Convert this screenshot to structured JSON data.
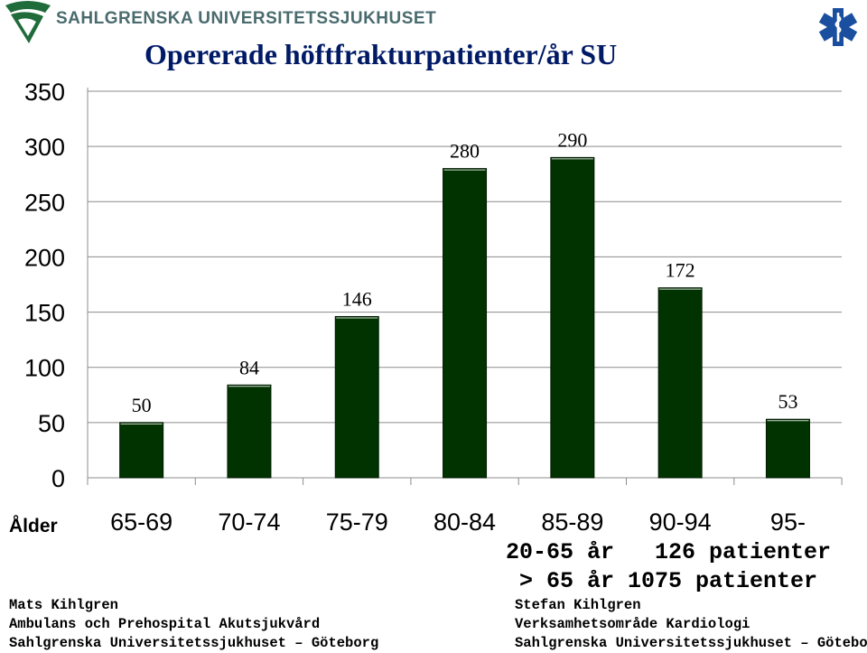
{
  "header": {
    "logo_text": "SAHLGRENSKA UNIVERSITETSSJUKHUSET",
    "logo_icon": "su-logo-icon",
    "corner_icon": "star-of-life-icon",
    "colors": {
      "logo_green": "#1f6b3a",
      "logo_text": "#4a6b6e",
      "title": "#001a66",
      "star": "#1a4fa0"
    }
  },
  "chart_data": {
    "type": "bar",
    "title": "Opererade höftfrakturpatienter/år SU",
    "xlabel": "Ålder",
    "ylabel": "",
    "categories": [
      "65-69",
      "70-74",
      "75-79",
      "80-84",
      "85-89",
      "90-94",
      "95-"
    ],
    "values": [
      50,
      84,
      146,
      280,
      290,
      172,
      53
    ],
    "data_labels": [
      "50",
      "84",
      "146",
      "280",
      "290",
      "172",
      "53"
    ],
    "ylim": [
      0,
      350
    ],
    "yticks": [
      0,
      50,
      100,
      150,
      200,
      250,
      300,
      350
    ],
    "grid": true,
    "bar_color": "#003300"
  },
  "summary": {
    "line1": "20-65 år   126 patienter",
    "line2": "> 65 år 1075 patienter"
  },
  "credits": {
    "left": [
      "Mats Kihlgren",
      "Ambulans och Prehospital Akutsjukvård",
      "Sahlgrenska Universitetssjukhuset – Göteborg"
    ],
    "right": [
      "Stefan Kihlgren",
      "Verksamhetsområde Kardiologi",
      "Sahlgrenska Universitetssjukhuset – Göteborg"
    ]
  }
}
